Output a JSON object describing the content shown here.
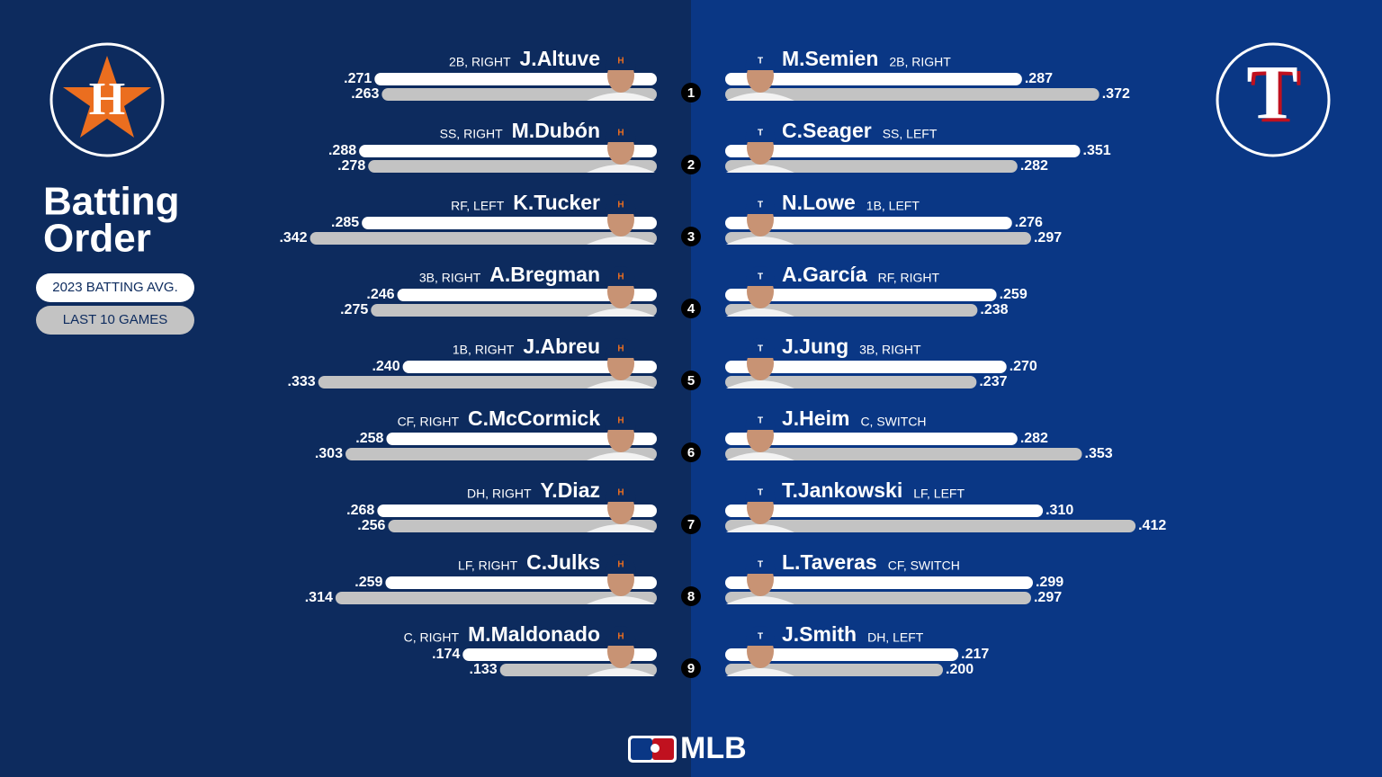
{
  "title": [
    "Batting",
    "Order"
  ],
  "legend": [
    "2023 BATTING AVG.",
    "LAST 10 GAMES"
  ],
  "footer": "MLB",
  "orders": [
    "1",
    "2",
    "3",
    "4",
    "5",
    "6",
    "7",
    "8",
    "9"
  ],
  "teams": [
    {
      "logo": "H",
      "players": [
        {
          "name": "J.Altuve",
          "position": "2B, RIGHT",
          "values": [
            0.271,
            0.263
          ],
          "value_labels": [
            ".271",
            ".263"
          ]
        },
        {
          "name": "M.Dubón",
          "position": "SS, RIGHT",
          "values": [
            0.288,
            0.278
          ],
          "value_labels": [
            ".288",
            ".278"
          ]
        },
        {
          "name": "K.Tucker",
          "position": "RF, LEFT",
          "values": [
            0.285,
            0.342
          ],
          "value_labels": [
            ".285",
            ".342"
          ]
        },
        {
          "name": "A.Bregman",
          "position": "3B, RIGHT",
          "values": [
            0.246,
            0.275
          ],
          "value_labels": [
            ".246",
            ".275"
          ]
        },
        {
          "name": "J.Abreu",
          "position": "1B, RIGHT",
          "values": [
            0.24,
            0.333
          ],
          "value_labels": [
            ".240",
            ".333"
          ]
        },
        {
          "name": "C.McCormick",
          "position": "CF, RIGHT",
          "values": [
            0.258,
            0.303
          ],
          "value_labels": [
            ".258",
            ".303"
          ]
        },
        {
          "name": "Y.Diaz",
          "position": "DH, RIGHT",
          "values": [
            0.268,
            0.256
          ],
          "value_labels": [
            ".268",
            ".256"
          ]
        },
        {
          "name": "C.Julks",
          "position": "LF, RIGHT",
          "values": [
            0.259,
            0.314
          ],
          "value_labels": [
            ".259",
            ".314"
          ]
        },
        {
          "name": "M.Maldonado",
          "position": "C, RIGHT",
          "values": [
            0.174,
            0.133
          ],
          "value_labels": [
            ".174",
            ".133"
          ]
        }
      ]
    },
    {
      "logo": "T",
      "players": [
        {
          "name": "M.Semien",
          "position": "2B, RIGHT",
          "values": [
            0.287,
            0.372
          ],
          "value_labels": [
            ".287",
            ".372"
          ]
        },
        {
          "name": "C.Seager",
          "position": "SS, LEFT",
          "values": [
            0.351,
            0.282
          ],
          "value_labels": [
            ".351",
            ".282"
          ]
        },
        {
          "name": "N.Lowe",
          "position": "1B, LEFT",
          "values": [
            0.276,
            0.297
          ],
          "value_labels": [
            ".276",
            ".297"
          ]
        },
        {
          "name": "A.García",
          "position": "RF, RIGHT",
          "values": [
            0.259,
            0.238
          ],
          "value_labels": [
            ".259",
            ".238"
          ]
        },
        {
          "name": "J.Jung",
          "position": "3B, RIGHT",
          "values": [
            0.27,
            0.237
          ],
          "value_labels": [
            ".270",
            ".237"
          ]
        },
        {
          "name": "J.Heim",
          "position": "C, SWITCH",
          "values": [
            0.282,
            0.353
          ],
          "value_labels": [
            ".282",
            ".353"
          ]
        },
        {
          "name": "T.Jankowski",
          "position": "LF, LEFT",
          "values": [
            0.31,
            0.412
          ],
          "value_labels": [
            ".310",
            ".412"
          ]
        },
        {
          "name": "L.Taveras",
          "position": "CF, SWITCH",
          "values": [
            0.299,
            0.297
          ],
          "value_labels": [
            ".299",
            ".297"
          ]
        },
        {
          "name": "J.Smith",
          "position": "DH, LEFT",
          "values": [
            0.217,
            0.2
          ],
          "value_labels": [
            ".217",
            ".200"
          ]
        }
      ]
    }
  ]
}
